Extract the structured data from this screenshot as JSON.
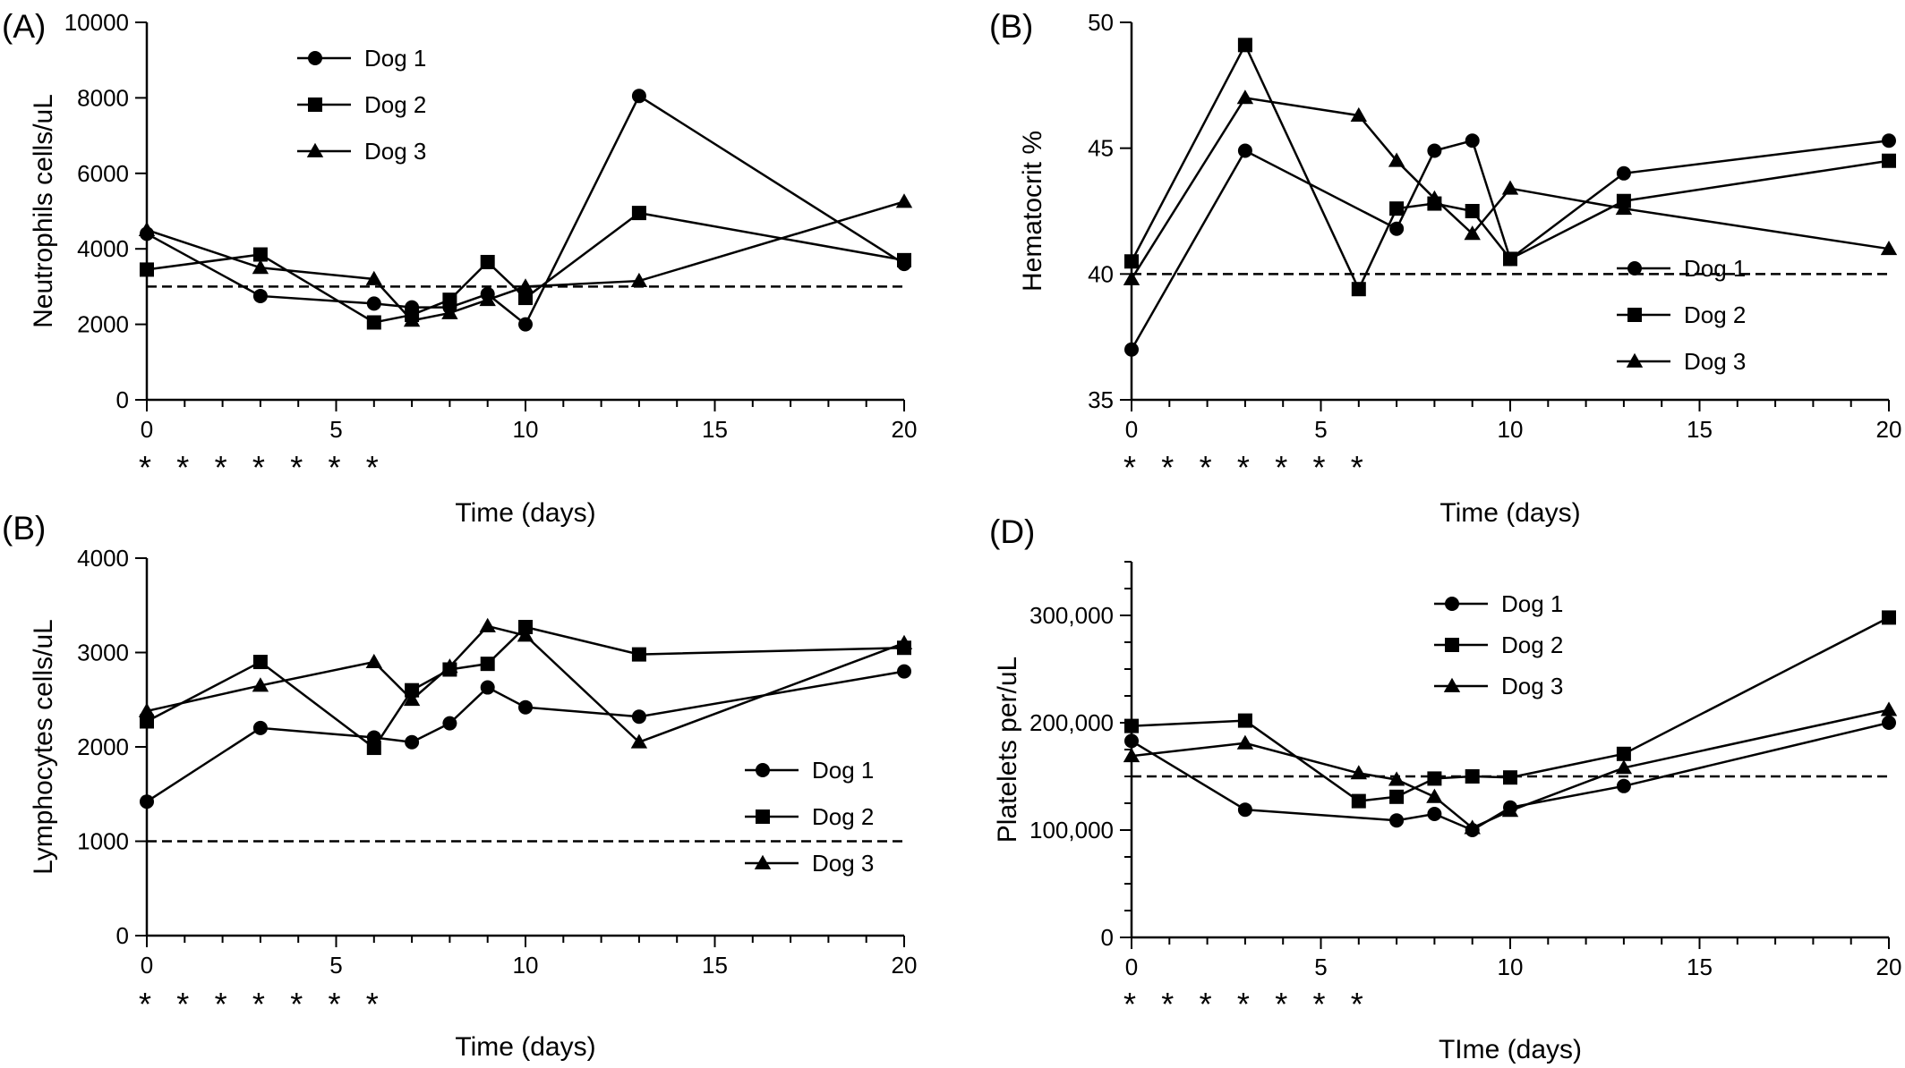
{
  "chart_data": [
    {
      "type": "line",
      "panel_label": "(A)",
      "xlabel": "Time (days)",
      "ylabel": "Neutrophils cells/uL",
      "xlim": [
        0,
        20
      ],
      "ylim": [
        0,
        10000
      ],
      "x_ticks": [
        "0",
        "5",
        "10",
        "15",
        "20"
      ],
      "y_ticks": [
        "0",
        "2000",
        "4000",
        "6000",
        "8000",
        "10000"
      ],
      "reference_line": 3000,
      "dosing_marks": [
        "*",
        "*",
        "*",
        "*",
        "*",
        "*",
        "*"
      ],
      "legend_position": "top-left",
      "series": [
        {
          "name": "Dog 1",
          "marker": "circle",
          "x": [
            0,
            3,
            6,
            7,
            8,
            9,
            10,
            13,
            20
          ],
          "y": [
            4400,
            2750,
            2550,
            2450,
            2450,
            2800,
            2000,
            8050,
            3600
          ]
        },
        {
          "name": "Dog 2",
          "marker": "square",
          "x": [
            0,
            3,
            6,
            7,
            8,
            9,
            10,
            13,
            20
          ],
          "y": [
            3450,
            3850,
            2050,
            2250,
            2650,
            3650,
            2700,
            4950,
            3700
          ]
        },
        {
          "name": "Dog 3",
          "marker": "triangle",
          "x": [
            0,
            3,
            6,
            7,
            8,
            9,
            10,
            13,
            20
          ],
          "y": [
            4500,
            3500,
            3200,
            2100,
            2300,
            2650,
            3000,
            3150,
            5250
          ]
        }
      ]
    },
    {
      "type": "line",
      "panel_label": "(B)",
      "xlabel": "Time (days)",
      "ylabel": "Hematocrit %",
      "xlim": [
        0,
        20
      ],
      "ylim": [
        35,
        50
      ],
      "x_ticks": [
        "0",
        "5",
        "10",
        "15",
        "20"
      ],
      "y_ticks": [
        "35",
        "40",
        "45",
        "50"
      ],
      "reference_line": 40,
      "dosing_marks": [
        "*",
        "*",
        "*",
        "*",
        "*",
        "*",
        "*"
      ],
      "legend_position": "bottom-right",
      "series": [
        {
          "name": "Dog 1",
          "marker": "circle",
          "x": [
            0,
            3,
            7,
            8,
            9,
            10,
            13,
            20
          ],
          "y": [
            37,
            44.9,
            41.8,
            44.9,
            45.3,
            40.6,
            44,
            45.3
          ]
        },
        {
          "name": "Dog 2",
          "marker": "square",
          "x": [
            0,
            3,
            6,
            7,
            8,
            9,
            10,
            13,
            20
          ],
          "y": [
            40.5,
            49.1,
            39.4,
            42.6,
            42.8,
            42.5,
            40.6,
            42.9,
            44.5
          ]
        },
        {
          "name": "Dog 3",
          "marker": "triangle",
          "x": [
            0,
            3,
            6,
            7,
            8,
            9,
            10,
            13,
            20
          ],
          "y": [
            39.8,
            47,
            46.3,
            44.5,
            43,
            41.6,
            43.4,
            42.6,
            41
          ]
        }
      ]
    },
    {
      "type": "line",
      "panel_label": "(B)",
      "xlabel": "Time (days)",
      "ylabel": "Lymphocytes cells/uL",
      "xlim": [
        0,
        20
      ],
      "ylim": [
        0,
        4000
      ],
      "x_ticks": [
        "0",
        "5",
        "10",
        "15",
        "20"
      ],
      "y_ticks": [
        "0",
        "1000",
        "2000",
        "3000",
        "4000"
      ],
      "reference_line": 1000,
      "dosing_marks": [
        "*",
        "*",
        "*",
        "*",
        "*",
        "*",
        "*"
      ],
      "legend_position": "bottom-right",
      "series": [
        {
          "name": "Dog 1",
          "marker": "circle",
          "x": [
            0,
            3,
            6,
            7,
            8,
            9,
            10,
            13,
            20
          ],
          "y": [
            1420,
            2200,
            2100,
            2050,
            2250,
            2630,
            2420,
            2320,
            2800
          ]
        },
        {
          "name": "Dog 2",
          "marker": "square",
          "x": [
            0,
            3,
            6,
            7,
            8,
            9,
            10,
            13,
            20
          ],
          "y": [
            2270,
            2900,
            1990,
            2600,
            2820,
            2880,
            3270,
            2980,
            3050
          ]
        },
        {
          "name": "Dog 3",
          "marker": "triangle",
          "x": [
            0,
            3,
            6,
            7,
            8,
            9,
            10,
            13,
            20
          ],
          "y": [
            2380,
            2650,
            2900,
            2500,
            2850,
            3280,
            3180,
            2050,
            3100
          ]
        }
      ]
    },
    {
      "type": "line",
      "panel_label": "(D)",
      "xlabel": "TIme (days)",
      "ylabel": "Platelets per/uL",
      "xlim": [
        0,
        20
      ],
      "ylim": [
        0,
        350000
      ],
      "x_ticks": [
        "0",
        "5",
        "10",
        "15",
        "20"
      ],
      "y_ticks": [
        "0",
        "100,000",
        "200,000",
        "300,000"
      ],
      "y_tick_values": [
        0,
        100000,
        200000,
        300000
      ],
      "reference_line": 150000,
      "dosing_marks": [
        "*",
        "*",
        "*",
        "*",
        "*",
        "*",
        "*"
      ],
      "legend_position": "top-center",
      "series": [
        {
          "name": "Dog 1",
          "marker": "circle",
          "x": [
            0,
            3,
            7,
            8,
            9,
            10,
            13,
            20
          ],
          "y": [
            183000,
            119000,
            109000,
            115000,
            100000,
            121000,
            141000,
            200000
          ]
        },
        {
          "name": "Dog 2",
          "marker": "square",
          "x": [
            0,
            3,
            6,
            7,
            8,
            9,
            10,
            13,
            20
          ],
          "y": [
            197000,
            202000,
            127000,
            131000,
            148000,
            150000,
            149000,
            171000,
            298000
          ]
        },
        {
          "name": "Dog 3",
          "marker": "triangle",
          "x": [
            0,
            3,
            6,
            7,
            8,
            9,
            10,
            13,
            20
          ],
          "y": [
            169000,
            181000,
            153000,
            147000,
            131000,
            102000,
            118000,
            158000,
            212000
          ]
        }
      ]
    }
  ]
}
